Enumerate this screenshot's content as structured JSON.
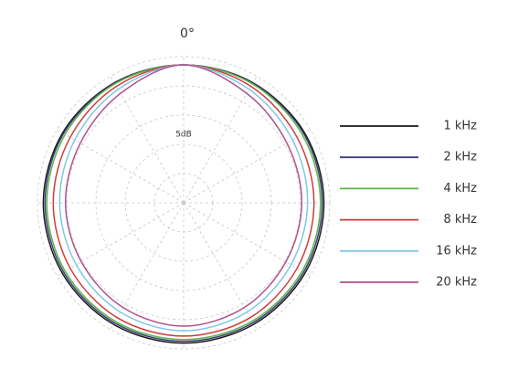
{
  "chart_data": {
    "type": "polar",
    "angle_label": "0°",
    "scale_label": "5dB",
    "angles": [
      0,
      30,
      60,
      90,
      120,
      150,
      180,
      210,
      240,
      270,
      300,
      330
    ],
    "rlim": [
      -25,
      0
    ],
    "rticks": [
      -20,
      -15,
      -10,
      -5,
      0
    ],
    "spokes": [
      0,
      30,
      60,
      90,
      120,
      150,
      180,
      210,
      240,
      270,
      300,
      330
    ],
    "grid": true,
    "legend": "right",
    "series": [
      {
        "name": "1 kHz",
        "color": "#1a1a1a",
        "values": [
          -1.4,
          -1.3,
          -1.1,
          -1.0,
          -1.0,
          -1.0,
          -1.0,
          -1.0,
          -1.0,
          -1.0,
          -1.1,
          -1.3
        ]
      },
      {
        "name": "2 kHz",
        "color": "#3b3f7a",
        "values": [
          -1.4,
          -1.4,
          -1.3,
          -1.3,
          -1.3,
          -1.3,
          -1.3,
          -1.3,
          -1.3,
          -1.3,
          -1.3,
          -1.4
        ]
      },
      {
        "name": "4 kHz",
        "color": "#5fb548",
        "values": [
          -1.4,
          -1.5,
          -1.6,
          -1.6,
          -1.6,
          -1.6,
          -1.6,
          -1.6,
          -1.6,
          -1.6,
          -1.6,
          -1.5
        ]
      },
      {
        "name": "8 kHz",
        "color": "#d23a3a",
        "values": [
          -1.4,
          -2.0,
          -2.6,
          -2.7,
          -2.6,
          -2.3,
          -2.2,
          -2.3,
          -2.6,
          -2.7,
          -2.6,
          -2.0
        ]
      },
      {
        "name": "16 kHz",
        "color": "#7cc8e8",
        "values": [
          -1.4,
          -2.6,
          -3.5,
          -3.8,
          -3.8,
          -3.4,
          -3.1,
          -3.4,
          -3.8,
          -3.8,
          -3.5,
          -2.6
        ]
      },
      {
        "name": "20 kHz",
        "color": "#b0508f",
        "values": [
          -1.4,
          -3.4,
          -4.6,
          -4.8,
          -4.8,
          -4.3,
          -3.9,
          -4.3,
          -4.8,
          -4.8,
          -4.6,
          -3.4
        ]
      }
    ]
  }
}
